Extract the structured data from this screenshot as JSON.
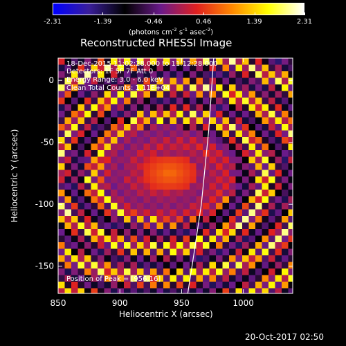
{
  "colorbar": {
    "ticks": [
      "-2.31",
      "-1.39",
      "-0.46",
      "0.46",
      "1.39",
      "2.31"
    ],
    "tick_values": [
      -2.31,
      -1.39,
      -0.46,
      0.46,
      1.39,
      2.31
    ],
    "range": [
      -2.31,
      2.31
    ],
    "colors": [
      "#0000ff",
      "#3a1e9a",
      "#000000",
      "#6a1a8a",
      "#e02020",
      "#ff8800",
      "#ffff00",
      "#ffffff"
    ]
  },
  "title": "Reconstructed RHESSI Image",
  "info": {
    "line1": "18-Dec-2015 11:02:28.000 to 11:12:28.000",
    "line2": "Detectors: 1F 5F 7F  Att 0",
    "line3": "Energy Range: 3.0 - 6.0 keV",
    "line4": "Clean     Total Counts: 1.11E+04",
    "peak": "Position of Peak = [956,16]"
  },
  "timestamp": "20-Oct-2017 02:50",
  "chart_data": {
    "type": "heatmap",
    "title": "Reconstructed RHESSI Image",
    "colorbar_units_prefix": "(photons cm",
    "colorbar_units_middle": " s",
    "colorbar_units_suffix": " asec",
    "colorbar_units_end": ")",
    "colorbar_units_exp1": "-2",
    "colorbar_units_exp2": "-1",
    "colorbar_units_exp3": "-2",
    "xlabel": "Heliocentric X (arcsec)",
    "ylabel": "Heliocentric Y (arcsec)",
    "xlim": [
      850,
      1040
    ],
    "ylim": [
      -172,
      18
    ],
    "xticks": [
      850,
      900,
      950,
      1000
    ],
    "yticks": [
      -150,
      -100,
      -50,
      0
    ],
    "xtick_labels": [
      "850",
      "900",
      "950",
      "1000"
    ],
    "ytick_labels": [
      "-150",
      "-100",
      "-50",
      "0"
    ],
    "limb": [
      [
        976,
        18
      ],
      [
        972,
        -40
      ],
      [
        966,
        -100
      ],
      [
        960,
        -140
      ],
      [
        955,
        -172
      ]
    ],
    "peak": [
      956,
      16
    ]
  }
}
